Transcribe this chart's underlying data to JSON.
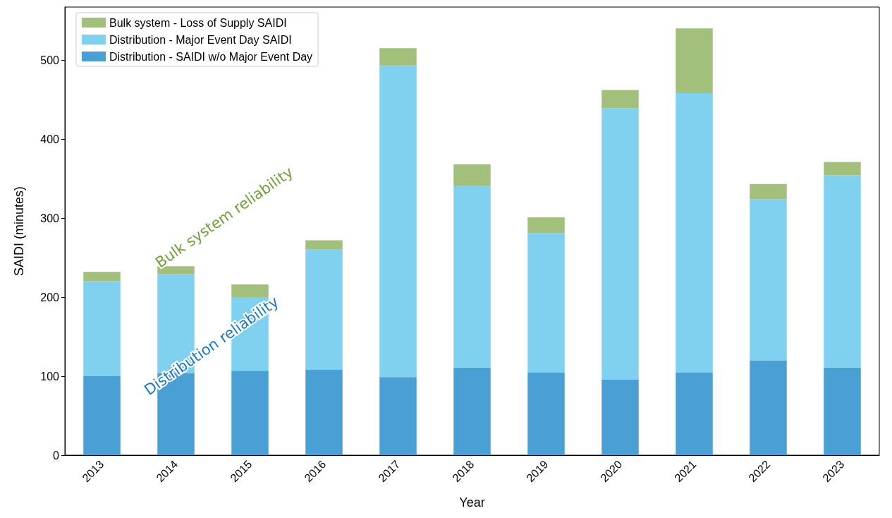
{
  "chart_data": {
    "type": "bar",
    "stacked": true,
    "xlabel": "Year",
    "ylabel": "SAIDI (minutes)",
    "categories": [
      "2013",
      "2014",
      "2015",
      "2016",
      "2017",
      "2018",
      "2019",
      "2020",
      "2021",
      "2022",
      "2023"
    ],
    "series": [
      {
        "name": "Distribution - SAIDI w/o Major Event Day",
        "color": "#4a9fd4",
        "values": [
          100,
          104,
          107,
          108,
          99,
          111,
          105,
          96,
          105,
          120,
          111
        ]
      },
      {
        "name": "Distribution - Major Event Day SAIDI",
        "color": "#80d0f0",
        "values": [
          120,
          125,
          93,
          152,
          394,
          230,
          176,
          343,
          353,
          204,
          243
        ]
      },
      {
        "name": "Bulk system - Loss of Supply SAIDI",
        "color": "#a3bf7c",
        "values": [
          12,
          10,
          16,
          12,
          22,
          27,
          20,
          23,
          82,
          19,
          17
        ]
      }
    ],
    "ylim": [
      0,
      567
    ],
    "yticks": [
      0,
      100,
      200,
      300,
      400,
      500
    ],
    "grid": false,
    "legend": "top left",
    "annotations": [
      "Bulk system reliability",
      "Distribution reliability"
    ]
  }
}
